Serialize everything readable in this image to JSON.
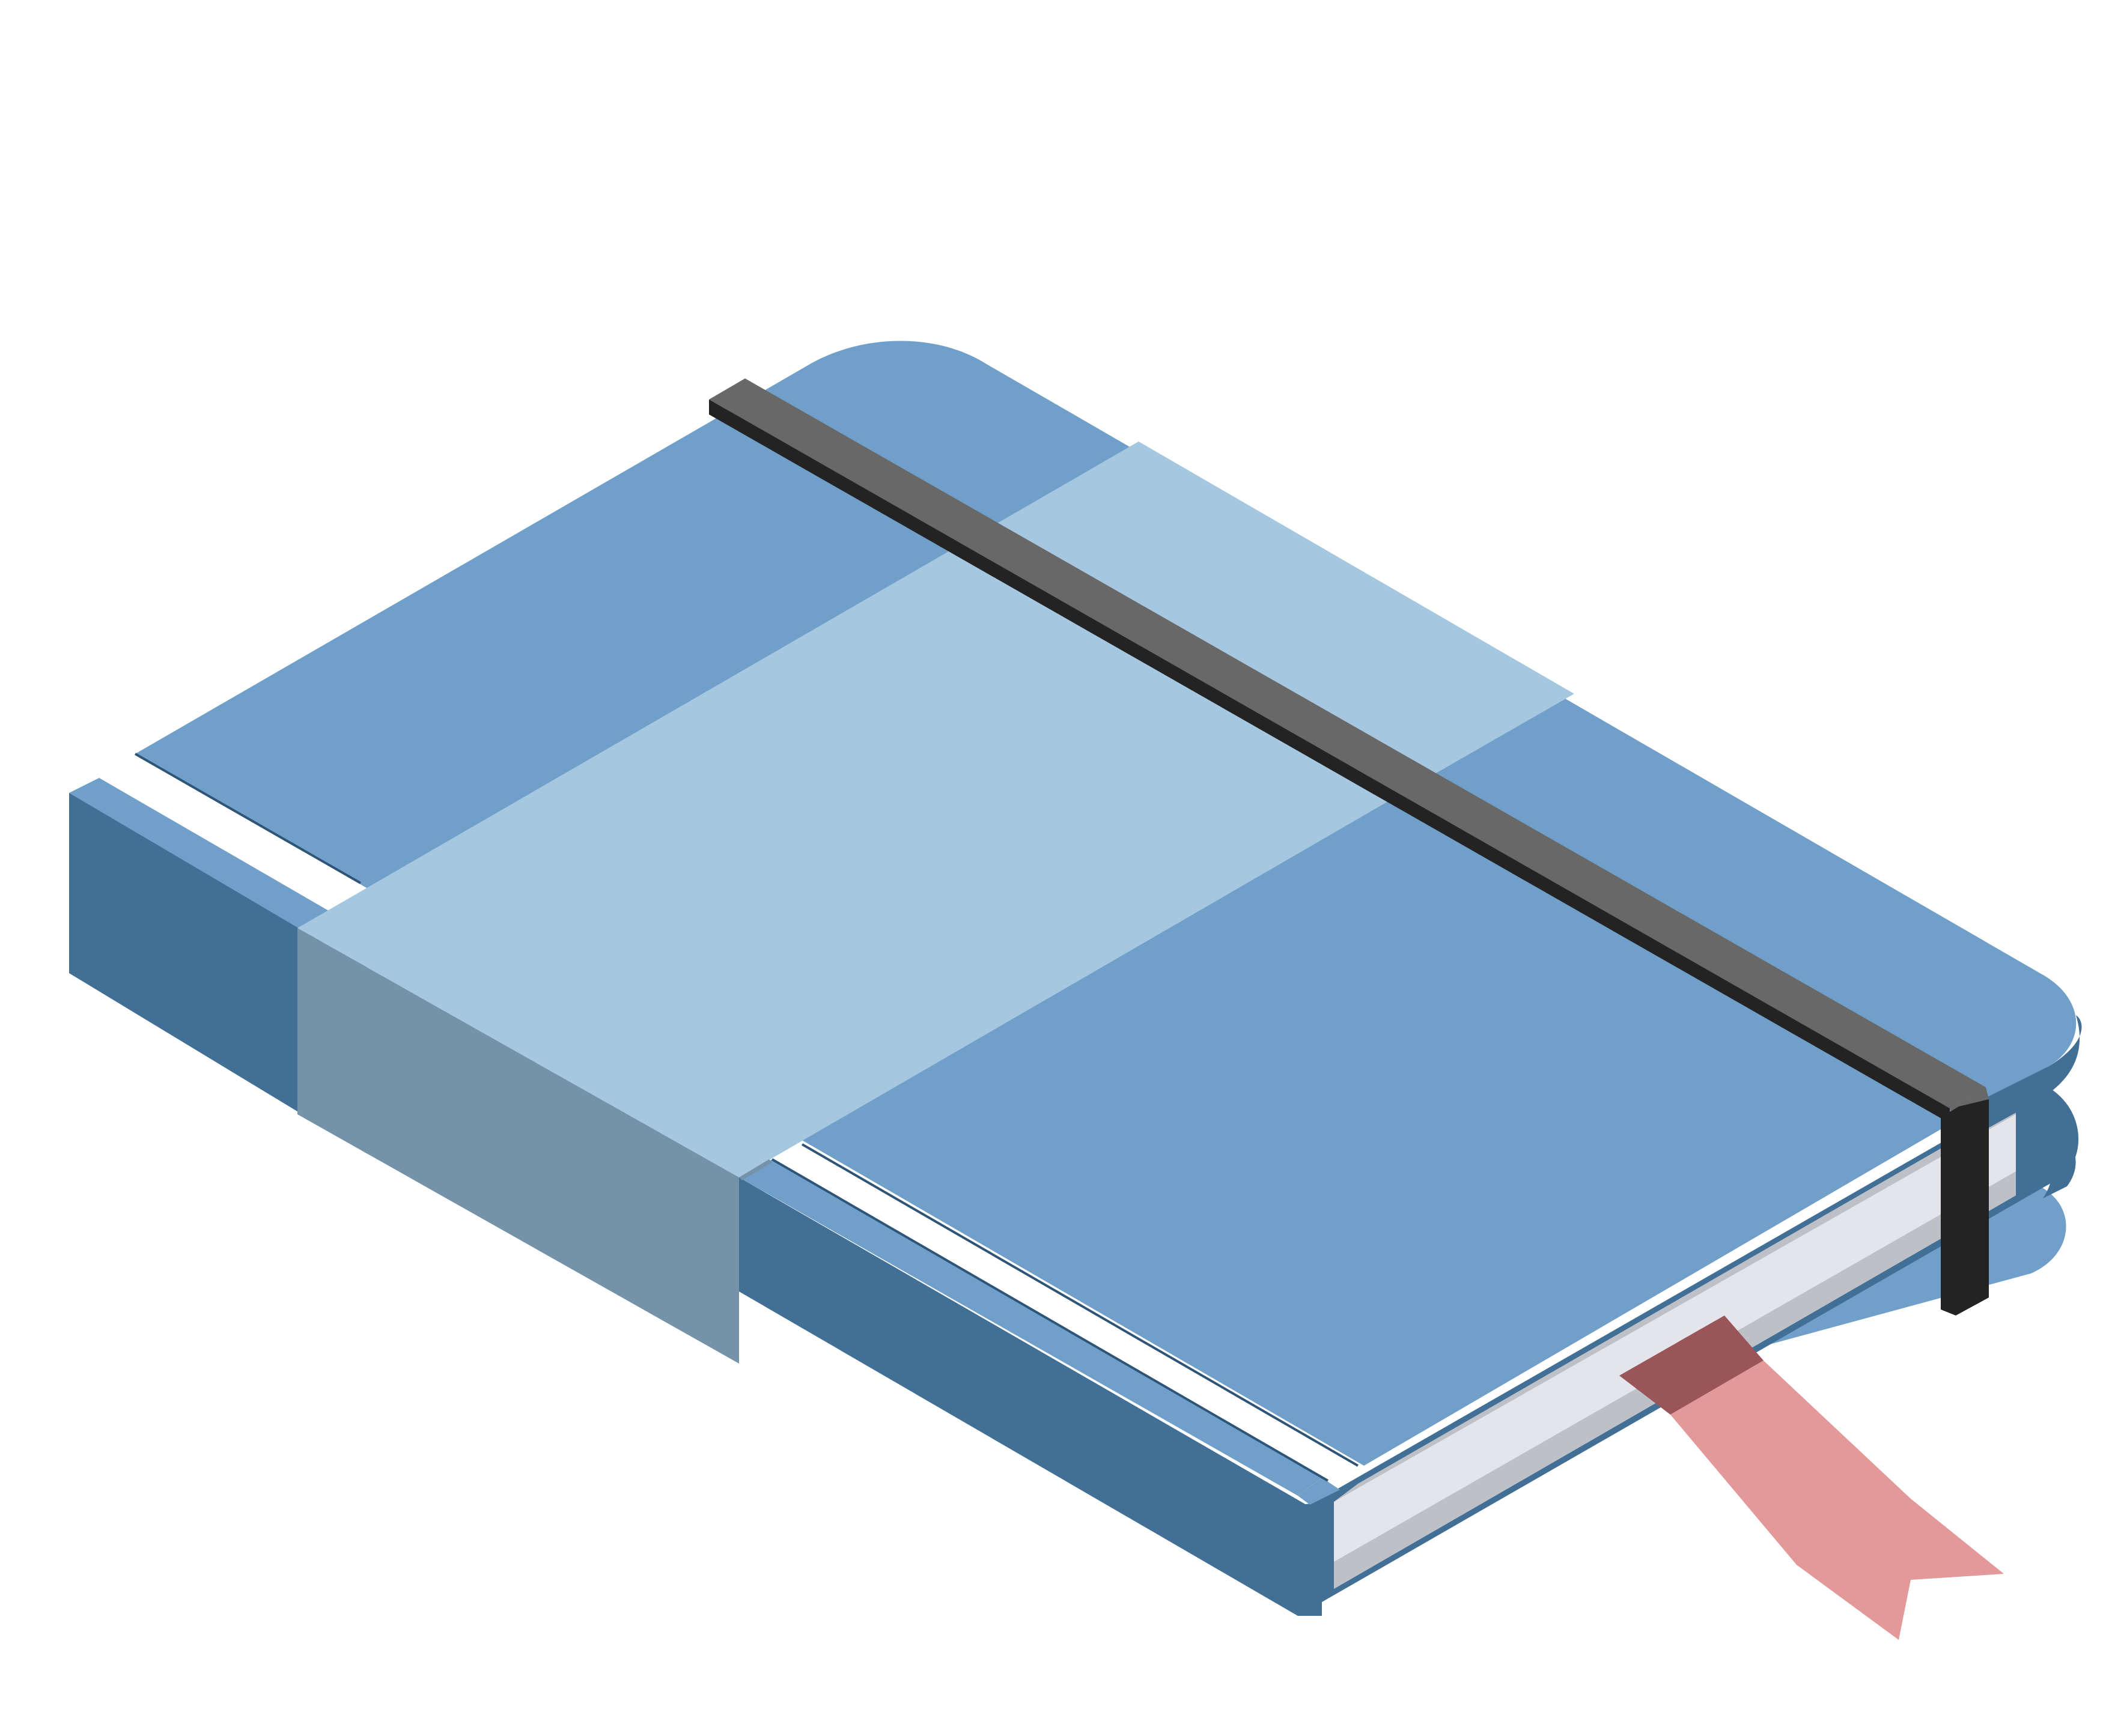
{
  "illustration": {
    "subject": "notebook",
    "colors": {
      "cover_top": "#70A0CA",
      "cover_side": "#426F96",
      "band_top": "#A5C7E0",
      "band_side": "#7492A8",
      "pages_light": "#E3E5EA",
      "pages_shade": "#BDC0C7",
      "elastic_top": "#686868",
      "elastic_side": "#232323",
      "ribbon_light": "#E3999A",
      "ribbon_dark": "#9A5558",
      "groove": "#2E5577"
    }
  }
}
